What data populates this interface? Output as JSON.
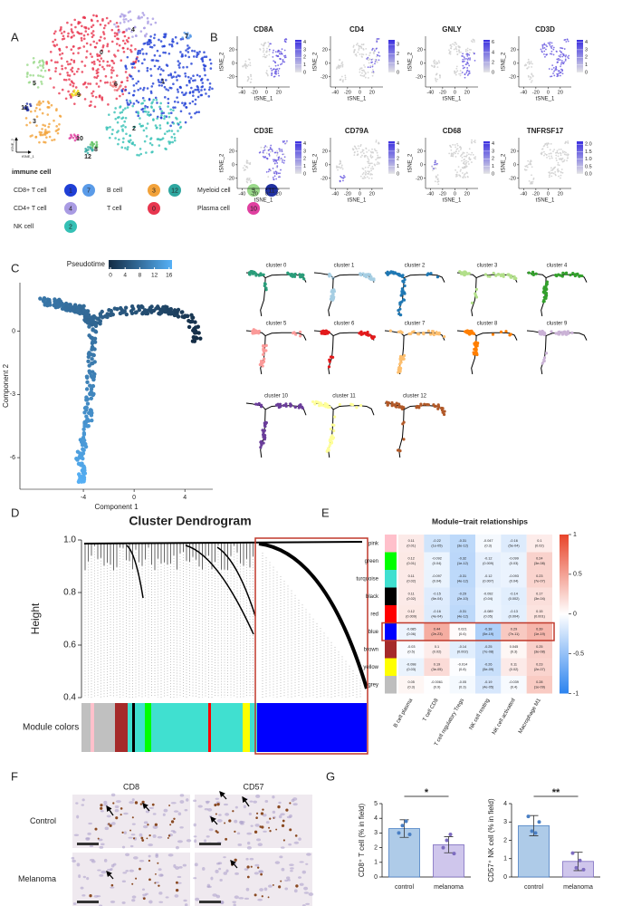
{
  "panel_labels": [
    "A",
    "B",
    "C",
    "D",
    "E",
    "F",
    "G"
  ],
  "tsne": {
    "cluster_labels": [
      "0",
      "1",
      "2",
      "3",
      "4",
      "5",
      "6",
      "7",
      "8",
      "9",
      "10",
      "11",
      "12"
    ],
    "cluster_colors": [
      "#e8364f",
      "#1f3fd6",
      "#35c0b5",
      "#f2a23a",
      "#a99be3",
      "#9ad98a",
      "#f07a7a",
      "#5a9be8",
      "#5cc060",
      "#f0e020",
      "#e040a0",
      "#2030a0",
      "#2fa7a0"
    ],
    "xlabel": "tSNE_1",
    "ylabel": "tSNE_2",
    "legend_title": "immune cell",
    "legend": [
      {
        "label": "CD8+ T cell",
        "clusters": [
          1,
          7
        ]
      },
      {
        "label": "B cell",
        "clusters": [
          3,
          12
        ]
      },
      {
        "label": "Myeloid cell",
        "clusters": [
          5,
          11
        ]
      },
      {
        "label": "CD4+ T cell",
        "clusters": [
          4
        ]
      },
      {
        "label": "T cell",
        "clusters": [
          0
        ]
      },
      {
        "label": "Plasma cell",
        "clusters": [
          10
        ]
      },
      {
        "label": "NK cell",
        "clusters": [
          2
        ]
      }
    ]
  },
  "feature_plots": {
    "xlabel": "tSNE_1",
    "ylabel": "tSNE_2",
    "xlim": [
      -48,
      38
    ],
    "ylim": [
      -35,
      40
    ],
    "xticks": [
      -40,
      -20,
      0,
      20
    ],
    "yticks": [
      -20,
      0,
      20
    ],
    "genes": [
      {
        "name": "CD8A",
        "cbar_lim": [
          0,
          4.3
        ],
        "cbar_ticks": [
          0,
          1,
          2,
          3,
          4
        ]
      },
      {
        "name": "CD4",
        "cbar_lim": [
          0,
          3.5
        ],
        "cbar_ticks": [
          0,
          1,
          2,
          3
        ]
      },
      {
        "name": "GNLY",
        "cbar_lim": [
          0,
          6.5
        ],
        "cbar_ticks": [
          0,
          2,
          4,
          6
        ]
      },
      {
        "name": "CD3D",
        "cbar_lim": [
          0,
          4.3
        ],
        "cbar_ticks": [
          0,
          1,
          2,
          3,
          4
        ]
      },
      {
        "name": "CD3E",
        "cbar_lim": [
          0,
          4.3
        ],
        "cbar_ticks": [
          0,
          1,
          2,
          3,
          4
        ]
      },
      {
        "name": "CD79A",
        "cbar_lim": [
          0,
          4.3
        ],
        "cbar_ticks": [
          0,
          1,
          2,
          3,
          4
        ]
      },
      {
        "name": "CD68",
        "cbar_lim": [
          0,
          4.3
        ],
        "cbar_ticks": [
          0,
          1,
          2,
          3,
          4
        ]
      },
      {
        "name": "TNFRSF17",
        "cbar_lim": [
          0,
          2.2
        ],
        "cbar_ticks": [
          {
            "value": 0,
            "label": "0.0"
          },
          0.5,
          {
            "value": 1,
            "label": "1.0"
          },
          1.5,
          {
            "value": 2,
            "label": "2.0"
          }
        ]
      }
    ]
  },
  "pseudotime": {
    "colorbar_title": "Pseudotime",
    "colorbar_ticks": [
      0,
      4,
      8,
      12,
      16
    ],
    "colorbar_lim": [
      -0.5,
      16.8
    ],
    "xlabel": "Component 1",
    "ylabel": "Component 2",
    "xticks": [
      -4,
      0,
      4
    ],
    "yticks": [
      -6,
      -3,
      0
    ],
    "xlim": [
      -9,
      6.2
    ],
    "ylim": [
      -7.5,
      2.3
    ]
  },
  "trajectory_clusters": {
    "titles": [
      "cluster 0",
      "cluster 1",
      "cluster 2",
      "cluster 3",
      "cluster 4",
      "cluster 5",
      "cluster 6",
      "cluster 7",
      "cluster 8",
      "cluster 9",
      "cluster 10",
      "cluster 11",
      "cluster 12"
    ],
    "colors": [
      "#2a9d7a",
      "#a6cee3",
      "#1f78b4",
      "#b2df8a",
      "#33a02c",
      "#fb9a99",
      "#e31a1c",
      "#fdbf6f",
      "#ff7f00",
      "#cab2d6",
      "#6a3d9a",
      "#ffff99",
      "#b15928"
    ]
  },
  "dendrogram": {
    "title": "Cluster Dendrogram",
    "ylabel": "Height",
    "yticks": [
      0.4,
      0.6,
      0.8,
      {
        "value": 1,
        "label": "1.0"
      }
    ],
    "ylim": [
      0.4,
      1
    ],
    "module_colors_label": "Module colors"
  },
  "heatmap": {
    "title": "Module−trait relationships",
    "rows": [
      "pink",
      "green",
      "turquoise",
      "black",
      "red",
      "blue",
      "brown",
      "yellow",
      "grey"
    ],
    "row_colors": [
      "#ffc0cb",
      "#00ff00",
      "#40e0d0",
      "#000000",
      "#ff0000",
      "#0000ff",
      "#a52a2a",
      "#ffff00",
      "#bebebe"
    ],
    "columns": [
      "B cell plasma",
      "T cell CD8",
      "T cell regulatory  Tregs",
      "NK cell resting",
      "NK cell activated",
      "Macrophage M1"
    ],
    "values": [
      [
        0.11,
        -0.22,
        -0.31,
        -0.047,
        -0.16,
        0.1
      ],
      [
        0.12,
        -0.092,
        -0.32,
        -0.12,
        -0.099,
        0.24
      ],
      [
        0.11,
        -0.097,
        -0.31,
        -0.12,
        -0.093,
        0.23
      ],
      [
        0.11,
        -0.15,
        -0.29,
        -0.092,
        -0.14,
        0.17
      ],
      [
        0.12,
        -0.16,
        -0.31,
        -0.089,
        -0.13,
        0.15
      ],
      [
        -0.085,
        0.44,
        0.021,
        -0.38,
        0.29,
        0.39
      ],
      [
        -0.03,
        0.1,
        -0.14,
        -0.25,
        0.045,
        0.25
      ],
      [
        -0.098,
        0.19,
        -0.014,
        -0.26,
        0.11,
        0.23
      ],
      [
        0.05,
        -0.0061,
        -0.05,
        -0.19,
        -0.039,
        0.28
      ]
    ],
    "p_labels": [
      [
        "(0.01)",
        "(1e-05)",
        "(3e-12)",
        "(0.3)",
        "(5e-04)",
        "(0.02)"
      ],
      [
        "(0.01)",
        "(0.04)",
        "(1e-12)",
        "(0.009)",
        "(0.03)",
        "(3e-08)"
      ],
      [
        "(0.02)",
        "(0.04)",
        "(4e-12)",
        "(0.007)",
        "(0.04)",
        "(7e-07)"
      ],
      [
        "(0.02)",
        "(6e-04)",
        "(2e-10)",
        "(0.04)",
        "(0.002)",
        "(3e-04)"
      ],
      [
        "(0.009)",
        "(4e-04)",
        "(4e-12)",
        "(0.05)",
        "(0.004)",
        "(0.001)"
      ],
      [
        "(0.06)",
        "(2e-23)",
        "(0.6)",
        "(5e-19)",
        "(7e-11)",
        "(1e-19)"
      ],
      [
        "(0.5)",
        "(0.02)",
        "(0.002)",
        "(7e-08)",
        "(0.3)",
        "(3e-08)"
      ],
      [
        "(0.03)",
        "(3e-05)",
        "(0.8)",
        "(5e-09)",
        "(0.02)",
        "(2e-07)"
      ],
      [
        "(0.3)",
        "(0.9)",
        "(0.3)",
        "(4e-05)",
        "(0.4)",
        "(1e-09)"
      ]
    ],
    "clim": [
      -1,
      1
    ],
    "colorbar_ticks": [
      -1,
      -0.5,
      0,
      0.5,
      1
    ]
  },
  "ihc": {
    "columns": [
      "CD8",
      "CD57"
    ],
    "rows": [
      "Control",
      "Melanoma"
    ]
  },
  "bar_charts": [
    {
      "ylabel": "CD8⁺ T cell (% in field)",
      "categories": [
        "control",
        "melanoma"
      ],
      "values": [
        3.3,
        2.2
      ],
      "errors": [
        0.6,
        0.55
      ],
      "points": [
        [
          3.0,
          3.5,
          3.8,
          2.9
        ],
        [
          2.0,
          2.5,
          2.9,
          1.6
        ]
      ],
      "colors": [
        "#aecbe8",
        "#cfc6ec"
      ],
      "ylim": [
        0,
        5
      ],
      "yticks": [
        0,
        1,
        2,
        3,
        4,
        5
      ],
      "significance": "*"
    },
    {
      "ylabel": "CD57⁺ NK cell (% in field)",
      "categories": [
        "control",
        "melanoma"
      ],
      "values": [
        2.8,
        0.85
      ],
      "errors": [
        0.55,
        0.5
      ],
      "points": [
        [
          3.3,
          2.5,
          2.4,
          3.0
        ],
        [
          1.3,
          0.5,
          0.9,
          0.4
        ]
      ],
      "colors": [
        "#aecbe8",
        "#cfc6ec"
      ],
      "ylim": [
        0,
        4
      ],
      "yticks": [
        0,
        1,
        2,
        3,
        4
      ],
      "significance": "**"
    }
  ]
}
